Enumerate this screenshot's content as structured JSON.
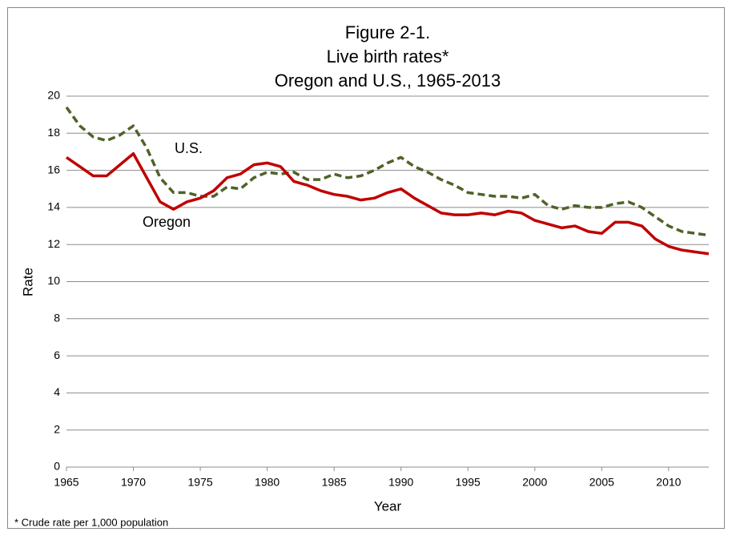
{
  "chart_data": {
    "type": "line",
    "title": [
      "Figure 2-1.",
      "Live birth rates*",
      "Oregon and U.S., 1965-2013"
    ],
    "x_label": "Year",
    "y_label": "Rate",
    "footnote": "* Crude rate per 1,000 population",
    "x": [
      1965,
      1966,
      1967,
      1968,
      1969,
      1970,
      1971,
      1972,
      1973,
      1974,
      1975,
      1976,
      1977,
      1978,
      1979,
      1980,
      1981,
      1982,
      1983,
      1984,
      1985,
      1986,
      1987,
      1988,
      1989,
      1990,
      1991,
      1992,
      1993,
      1994,
      1995,
      1996,
      1997,
      1998,
      1999,
      2000,
      2001,
      2002,
      2003,
      2004,
      2005,
      2006,
      2007,
      2008,
      2009,
      2010,
      2011,
      2012,
      2013
    ],
    "series": [
      {
        "name": "U.S.",
        "color": "#4f6228",
        "dashed": true,
        "values": [
          19.4,
          18.4,
          17.8,
          17.6,
          17.9,
          18.4,
          17.2,
          15.6,
          14.8,
          14.8,
          14.6,
          14.6,
          15.1,
          15.0,
          15.6,
          15.9,
          15.8,
          15.9,
          15.5,
          15.5,
          15.8,
          15.6,
          15.7,
          16.0,
          16.4,
          16.7,
          16.2,
          15.9,
          15.5,
          15.2,
          14.8,
          14.7,
          14.6,
          14.6,
          14.5,
          14.7,
          14.1,
          13.9,
          14.1,
          14.0,
          14.0,
          14.2,
          14.3,
          14.0,
          13.5,
          13.0,
          12.7,
          12.6,
          12.5
        ]
      },
      {
        "name": "Oregon",
        "color": "#c00000",
        "dashed": false,
        "values": [
          16.7,
          16.2,
          15.7,
          15.7,
          16.3,
          16.9,
          15.6,
          14.3,
          13.9,
          14.3,
          14.5,
          14.9,
          15.6,
          15.8,
          16.3,
          16.4,
          16.2,
          15.4,
          15.2,
          14.9,
          14.7,
          14.6,
          14.4,
          14.5,
          14.8,
          15.0,
          14.5,
          14.1,
          13.7,
          13.6,
          13.6,
          13.7,
          13.6,
          13.8,
          13.7,
          13.3,
          13.1,
          12.9,
          13.0,
          12.7,
          12.6,
          13.2,
          13.2,
          13.0,
          12.3,
          11.9,
          11.7,
          11.6,
          11.5
        ]
      }
    ],
    "xlim": [
      1965,
      2013
    ],
    "xticks": [
      1965,
      1970,
      1975,
      1980,
      1985,
      1990,
      1995,
      2000,
      2005,
      2010
    ],
    "ylim": [
      0,
      20
    ],
    "yticks": [
      0,
      2,
      4,
      6,
      8,
      10,
      12,
      14,
      16,
      18,
      20
    ],
    "grid": true
  }
}
